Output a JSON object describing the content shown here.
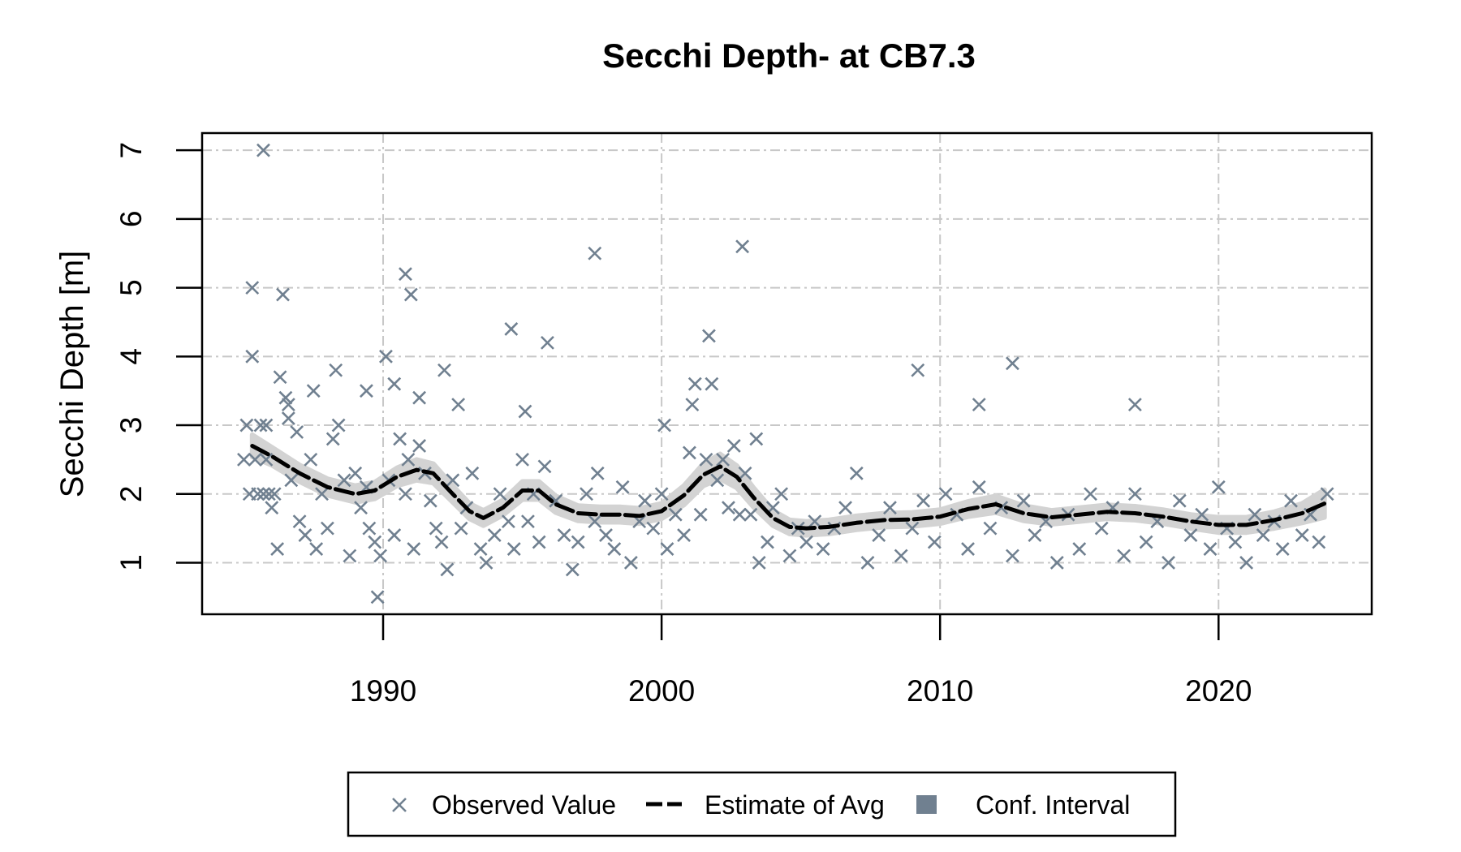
{
  "chart_data": {
    "type": "scatter",
    "title": "Secchi Depth- at CB7.3",
    "xlabel": "",
    "ylabel": "Secchi Depth [m]",
    "xlim": [
      1983.5,
      2025.5
    ],
    "ylim": [
      0.25,
      7.25
    ],
    "x_ticks": [
      1990,
      2000,
      2010,
      2020
    ],
    "x_tick_labels": [
      "1990",
      "2000",
      "2010",
      "2020"
    ],
    "y_ticks": [
      1,
      2,
      3,
      4,
      5,
      6,
      7
    ],
    "y_tick_labels": [
      "1",
      "2",
      "3",
      "4",
      "5",
      "6",
      "7"
    ],
    "grid": true,
    "legend_position": "bottom",
    "colors": {
      "observed": "#708090",
      "estimate": "#000000",
      "ci": "#d3d3d3",
      "legend_ci_swatch": "#708090"
    },
    "legend": [
      {
        "label": "Observed Value",
        "symbol": "x"
      },
      {
        "label": "Estimate of Avg",
        "symbol": "dashed-line"
      },
      {
        "label": "Conf. Interval",
        "symbol": "filled-square"
      }
    ],
    "estimate": {
      "name": "Estimate of Avg",
      "x": [
        1985.3,
        1986.0,
        1987.0,
        1988.0,
        1989.0,
        1989.7,
        1990.5,
        1991.2,
        1991.8,
        1992.5,
        1993.1,
        1993.6,
        1994.3,
        1995.0,
        1995.6,
        1996.2,
        1997.0,
        1997.8,
        1998.5,
        1999.2,
        2000.0,
        2000.8,
        2001.5,
        2002.1,
        2002.7,
        2003.3,
        2004.0,
        2004.6,
        2005.2,
        2006.0,
        2007.0,
        2008.0,
        2009.0,
        2010.0,
        2011.0,
        2012.0,
        2013.0,
        2014.0,
        2015.0,
        2016.0,
        2017.0,
        2018.0,
        2019.0,
        2020.0,
        2021.0,
        2022.0,
        2023.0,
        2023.8
      ],
      "y": [
        2.7,
        2.55,
        2.3,
        2.1,
        2.0,
        2.05,
        2.25,
        2.35,
        2.3,
        2.0,
        1.75,
        1.65,
        1.8,
        2.05,
        2.05,
        1.85,
        1.72,
        1.7,
        1.7,
        1.68,
        1.75,
        1.98,
        2.28,
        2.4,
        2.25,
        1.95,
        1.65,
        1.52,
        1.5,
        1.52,
        1.58,
        1.62,
        1.63,
        1.67,
        1.78,
        1.85,
        1.72,
        1.66,
        1.7,
        1.74,
        1.72,
        1.67,
        1.6,
        1.55,
        1.55,
        1.62,
        1.72,
        1.86
      ]
    },
    "ci_halfwidth": [
      0.16,
      0.13,
      0.12,
      0.12,
      0.12,
      0.12,
      0.13,
      0.15,
      0.14,
      0.12,
      0.11,
      0.11,
      0.11,
      0.13,
      0.13,
      0.12,
      0.11,
      0.11,
      0.11,
      0.11,
      0.11,
      0.14,
      0.16,
      0.18,
      0.16,
      0.14,
      0.11,
      0.1,
      0.1,
      0.1,
      0.1,
      0.1,
      0.1,
      0.1,
      0.11,
      0.12,
      0.11,
      0.1,
      0.1,
      0.1,
      0.1,
      0.1,
      0.1,
      0.11,
      0.11,
      0.12,
      0.14,
      0.2
    ],
    "observed": {
      "name": "Observed Value",
      "x": [
        1985.0,
        1985.1,
        1985.2,
        1985.3,
        1985.4,
        1985.5,
        1985.6,
        1985.7,
        1985.8,
        1985.9,
        1986.0,
        1986.1,
        1986.2,
        1986.3,
        1986.5,
        1986.6,
        1986.7,
        1986.9,
        1987.0,
        1987.2,
        1987.4,
        1987.6,
        1987.8,
        1988.0,
        1988.2,
        1988.4,
        1988.6,
        1988.8,
        1989.0,
        1989.2,
        1989.4,
        1989.5,
        1989.7,
        1989.9,
        1990.2,
        1990.4,
        1990.6,
        1990.8,
        1990.9,
        1991.1,
        1991.3,
        1991.5,
        1991.7,
        1991.9,
        1992.1,
        1992.3,
        1992.5,
        1992.8,
        1993.0,
        1993.2,
        1993.5,
        1993.7,
        1994.0,
        1994.2,
        1994.5,
        1994.7,
        1995.0,
        1995.2,
        1995.4,
        1995.6,
        1995.8,
        1996.2,
        1996.5,
        1996.8,
        1997.0,
        1997.3,
        1997.6,
        1997.7,
        1998.0,
        1998.3,
        1998.6,
        1998.9,
        1999.2,
        1999.4,
        1999.7,
        2000.0,
        2000.2,
        2000.5,
        2000.8,
        2001.0,
        2001.2,
        2001.4,
        2001.6,
        2001.8,
        2002.0,
        2002.2,
        2002.4,
        2002.6,
        2002.8,
        2003.0,
        2003.2,
        2003.5,
        2003.8,
        2004.0,
        2004.3,
        2004.6,
        2004.9,
        2005.2,
        2005.5,
        2005.8,
        2006.2,
        2006.6,
        2007.0,
        2007.4,
        2007.8,
        2008.2,
        2008.6,
        2009.0,
        2009.4,
        2009.8,
        2010.2,
        2010.6,
        2011.0,
        2011.4,
        2011.8,
        2012.2,
        2012.6,
        2013.0,
        2013.4,
        2013.8,
        2014.2,
        2014.6,
        2015.0,
        2015.4,
        2015.8,
        2016.2,
        2016.6,
        2017.0,
        2017.4,
        2017.8,
        2018.2,
        2018.6,
        2019.0,
        2019.4,
        2019.7,
        2020.0,
        2020.3,
        2020.6,
        2021.0,
        2021.3,
        2021.6,
        2022.0,
        2022.3,
        2022.6,
        2023.0,
        2023.3,
        2023.6,
        2023.9,
        1985.7,
        1985.3,
        1985.8,
        1986.4,
        1986.6,
        1987.5,
        1988.3,
        1989.4,
        1990.1,
        1990.4,
        1990.8,
        1991.0,
        1991.3,
        1992.2,
        1992.7,
        1994.6,
        1995.1,
        1995.9,
        1997.6,
        2000.1,
        2001.1,
        2001.7,
        2002.9,
        2003.4,
        2009.2,
        2011.4,
        2012.6,
        2017.0,
        1989.8
      ],
      "y": [
        2.5,
        3.0,
        2.0,
        4.0,
        2.5,
        2.0,
        3.0,
        2.0,
        3.0,
        2.0,
        1.8,
        2.0,
        1.2,
        3.7,
        3.4,
        3.1,
        2.2,
        2.9,
        1.6,
        1.4,
        2.5,
        1.2,
        2.0,
        1.5,
        2.8,
        3.0,
        2.2,
        1.1,
        2.3,
        1.8,
        2.1,
        1.5,
        1.3,
        1.1,
        2.2,
        1.4,
        2.8,
        2.0,
        2.5,
        1.2,
        2.7,
        2.3,
        1.9,
        1.5,
        1.3,
        0.9,
        2.2,
        1.5,
        1.8,
        2.3,
        1.2,
        1.0,
        1.4,
        2.0,
        1.6,
        1.2,
        2.5,
        1.6,
        2.0,
        1.3,
        2.4,
        1.9,
        1.4,
        0.9,
        1.3,
        2.0,
        1.6,
        2.3,
        1.4,
        1.2,
        2.1,
        1.0,
        1.6,
        1.9,
        1.5,
        2.0,
        1.2,
        1.7,
        1.4,
        2.6,
        3.6,
        1.7,
        2.5,
        3.6,
        2.2,
        2.5,
        1.8,
        2.7,
        1.7,
        2.3,
        1.7,
        1.0,
        1.3,
        1.8,
        2.0,
        1.1,
        1.5,
        1.3,
        1.6,
        1.2,
        1.5,
        1.8,
        2.3,
        1.0,
        1.4,
        1.8,
        1.1,
        1.5,
        1.9,
        1.3,
        2.0,
        1.7,
        1.2,
        2.1,
        1.5,
        1.8,
        1.1,
        1.9,
        1.4,
        1.6,
        1.0,
        1.7,
        1.2,
        2.0,
        1.5,
        1.8,
        1.1,
        2.0,
        1.3,
        1.6,
        1.0,
        1.9,
        1.4,
        1.7,
        1.2,
        2.1,
        1.5,
        1.3,
        1.0,
        1.7,
        1.4,
        1.6,
        1.2,
        1.9,
        1.4,
        1.7,
        1.3,
        2.0,
        7.0,
        5.0,
        2.5,
        4.9,
        3.3,
        3.5,
        3.8,
        3.5,
        4.0,
        3.6,
        5.2,
        4.9,
        3.4,
        3.8,
        3.3,
        4.4,
        3.2,
        4.2,
        5.5,
        3.0,
        3.3,
        4.3,
        5.6,
        2.8,
        3.8,
        3.3,
        3.9,
        3.3,
        0.5
      ]
    }
  }
}
